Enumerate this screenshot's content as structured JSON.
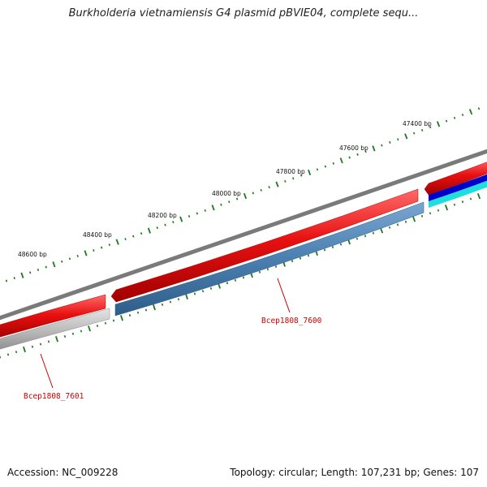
{
  "title": "Burkholderia vietnamiensis G4 plasmid pBVIE04, complete sequ...",
  "footer": {
    "accession": "Accession: NC_009228",
    "summary": "Topology: circular; Length: 107,231 bp; Genes: 107"
  },
  "scale_labels": [
    "47400 bp",
    "47600 bp",
    "47800 bp",
    "48000 bp",
    "48200 bp",
    "48400 bp",
    "48600 bp"
  ],
  "genes": [
    {
      "label": "Bcep1808_7600",
      "color": "#cc0000"
    },
    {
      "label": "Bcep1808_7601",
      "color": "#cc0000"
    }
  ],
  "colors": {
    "backbone": "#7a7a7a",
    "forward_cds": "#e01010",
    "reverse_cds": "#4a7fb0",
    "reverse_other": "#b8b8b8",
    "tick": "#1a7a1a",
    "track_blue": "#0000cc",
    "track_cyan": "#22dddd"
  }
}
